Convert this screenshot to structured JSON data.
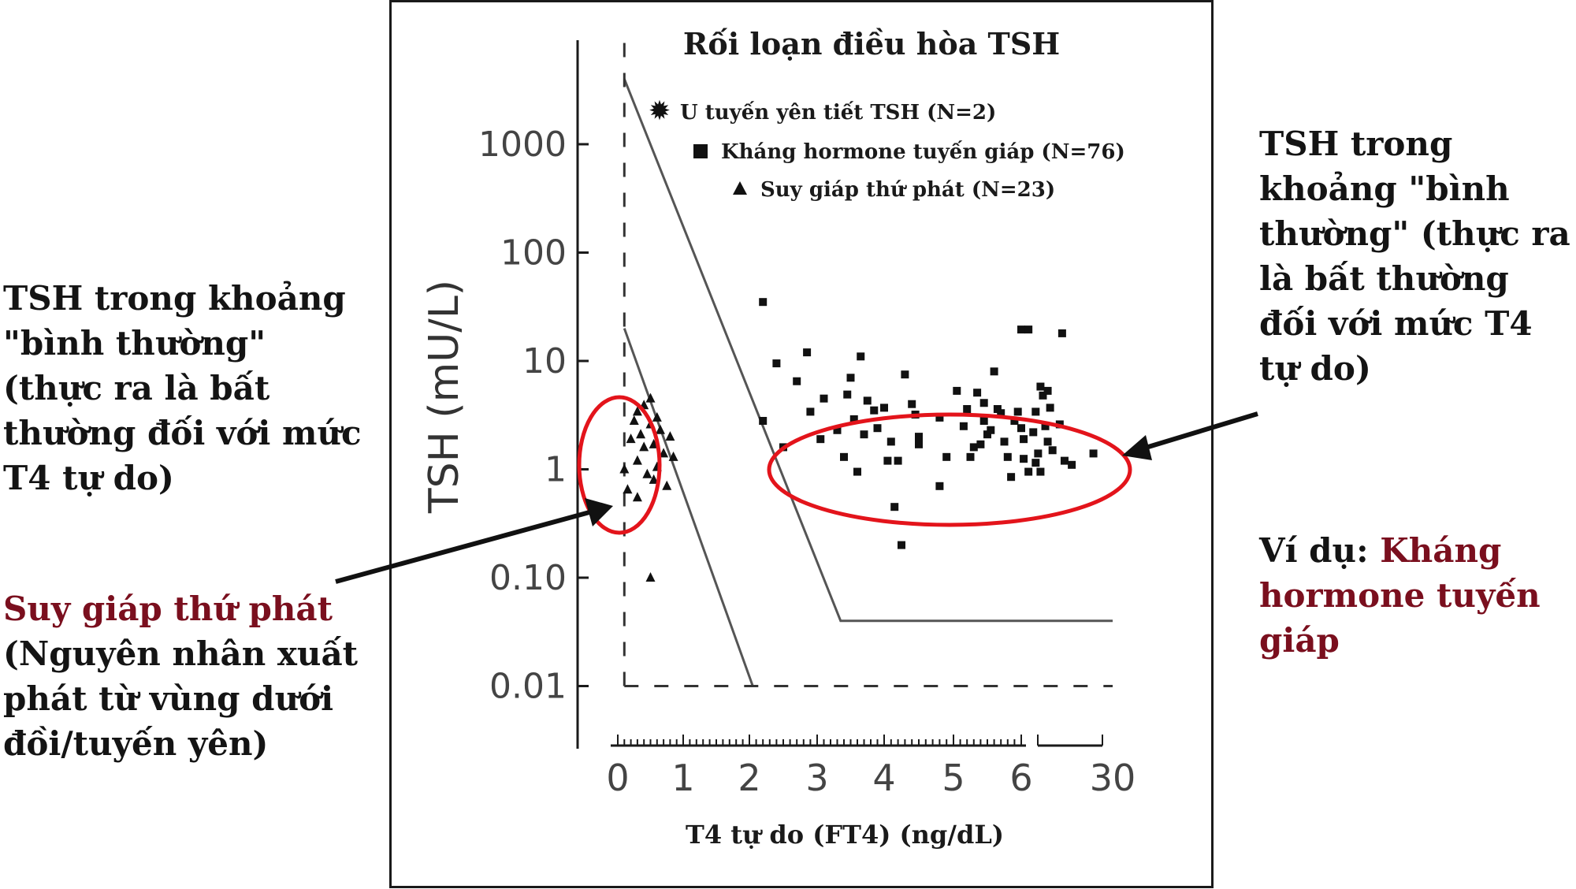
{
  "annotations": {
    "left_top": "TSH trong khoảng \"bình thường\" (thực ra là bất thường đối với mức T4 tự do)",
    "left_bottom_red": "Suy giáp thứ phát",
    "left_bottom_rest": "(Nguyên nhân xuất phát từ vùng dưới đồi/tuyến yên)",
    "right_top": "TSH trong khoảng \"bình thường\" (thực ra là bất thường đối với mức T4 tự do)",
    "right_bottom_prefix": "Ví dụ: ",
    "right_bottom_red": "Kháng hormone tuyến giáp"
  },
  "colors": {
    "highlight_red": "#e3141b",
    "text_dark_red": "#7a0f1e",
    "ink": "#1a1a1a"
  },
  "chart_data": {
    "type": "scatter",
    "title": "Rối loạn điều hòa TSH",
    "xlabel": "T4 tự do (FT4) (ng/dL)",
    "ylabel": "TSH (mU/L)",
    "y_scale": "log",
    "y_ticks": [
      "0.01",
      "0.10",
      "1",
      "10",
      "100",
      "1000"
    ],
    "x_ticks": [
      "0",
      "1",
      "2",
      "3",
      "4",
      "5",
      "6",
      "30"
    ],
    "x_axis_note": "broken axis between 6 and 30",
    "legend": [
      {
        "marker": "star",
        "label": "U tuyến yên tiết TSH (N=2)"
      },
      {
        "marker": "square",
        "label": "Kháng hormone tuyến giáp (N=76)"
      },
      {
        "marker": "triangle",
        "label": "Suy giáp thứ phát (N=23)"
      }
    ],
    "series": [
      {
        "name": "Suy giáp thứ phát (N=23)",
        "marker": "triangle",
        "points": [
          [
            0.1,
            1.0
          ],
          [
            0.15,
            0.65
          ],
          [
            0.2,
            1.9
          ],
          [
            0.25,
            2.8
          ],
          [
            0.3,
            3.4
          ],
          [
            0.3,
            1.2
          ],
          [
            0.35,
            2.1
          ],
          [
            0.4,
            3.9
          ],
          [
            0.4,
            1.6
          ],
          [
            0.45,
            0.9
          ],
          [
            0.5,
            4.5
          ],
          [
            0.5,
            2.6
          ],
          [
            0.55,
            1.7
          ],
          [
            0.6,
            3.0
          ],
          [
            0.6,
            1.05
          ],
          [
            0.65,
            2.3
          ],
          [
            0.7,
            1.4
          ],
          [
            0.75,
            0.7
          ],
          [
            0.8,
            2.0
          ],
          [
            0.85,
            1.3
          ],
          [
            0.3,
            0.55
          ],
          [
            0.55,
            0.8
          ],
          [
            0.5,
            0.1
          ]
        ]
      },
      {
        "name": "Kháng hormone tuyến giáp (N=76)",
        "marker": "square",
        "points": [
          [
            2.2,
            35
          ],
          [
            2.2,
            2.8
          ],
          [
            2.4,
            9.5
          ],
          [
            2.5,
            1.6
          ],
          [
            2.7,
            6.5
          ],
          [
            2.85,
            12
          ],
          [
            2.9,
            3.4
          ],
          [
            3.05,
            1.9
          ],
          [
            3.1,
            4.5
          ],
          [
            3.3,
            2.3
          ],
          [
            3.4,
            1.3
          ],
          [
            3.45,
            4.9
          ],
          [
            3.5,
            7
          ],
          [
            3.55,
            2.9
          ],
          [
            3.6,
            0.95
          ],
          [
            3.65,
            11
          ],
          [
            3.7,
            2.1
          ],
          [
            3.75,
            4.3
          ],
          [
            3.85,
            3.5
          ],
          [
            3.9,
            2.4
          ],
          [
            4.0,
            3.7
          ],
          [
            4.05,
            1.2
          ],
          [
            4.1,
            1.8
          ],
          [
            4.15,
            0.45
          ],
          [
            4.2,
            1.2
          ],
          [
            4.25,
            0.2
          ],
          [
            4.3,
            7.5
          ],
          [
            4.4,
            4.0
          ],
          [
            4.45,
            3.2
          ],
          [
            4.5,
            1.7
          ],
          [
            4.5,
            2.0
          ],
          [
            4.8,
            0.7
          ],
          [
            4.8,
            3.0
          ],
          [
            4.9,
            1.3
          ],
          [
            5.05,
            5.3
          ],
          [
            5.15,
            2.5
          ],
          [
            5.25,
            1.3
          ],
          [
            5.35,
            5.1
          ],
          [
            5.45,
            4.1
          ],
          [
            5.45,
            2.8
          ],
          [
            5.55,
            2.3
          ],
          [
            5.6,
            8
          ],
          [
            5.65,
            3.6
          ],
          [
            5.75,
            1.8
          ],
          [
            5.8,
            1.3
          ],
          [
            5.85,
            0.85
          ],
          [
            5.95,
            3.4
          ],
          [
            6.0,
            2.4
          ],
          [
            6.05,
            1.9
          ],
          [
            6.05,
            1.25
          ],
          [
            6.15,
            0.95
          ],
          [
            5.2,
            3.6
          ],
          [
            5.3,
            1.6
          ],
          [
            5.4,
            1.7
          ],
          [
            5.5,
            2.1
          ],
          [
            5.7,
            3.3
          ],
          [
            5.9,
            2.8
          ],
          [
            6.0,
            19.5
          ],
          [
            6.15,
            19.5
          ],
          [
            6.3,
            3.4
          ],
          [
            6.35,
            1.4
          ],
          [
            6.4,
            5.8
          ],
          [
            6.4,
            0.95
          ],
          [
            6.45,
            4.8
          ],
          [
            6.5,
            2.5
          ],
          [
            6.55,
            1.8
          ],
          [
            6.6,
            3.7
          ],
          [
            6.65,
            1.5
          ],
          [
            6.8,
            2.6
          ],
          [
            6.9,
            1.2
          ],
          [
            7.05,
            1.1
          ],
          [
            7.5,
            1.4
          ],
          [
            6.85,
            18
          ],
          [
            6.55,
            5.3
          ],
          [
            6.25,
            2.2
          ],
          [
            6.3,
            1.15
          ]
        ]
      }
    ],
    "reference_lines": [
      {
        "label": "upper limit of expected TSH for FT4",
        "points": [
          [
            0.1,
            4000
          ],
          [
            3.35,
            0.04
          ],
          [
            7.9,
            0.04
          ]
        ]
      },
      {
        "label": "lower limit of expected TSH for FT4",
        "points": [
          [
            0.1,
            20
          ],
          [
            2.05,
            0.01
          ]
        ]
      },
      {
        "label": "dashed boundary",
        "style": "dashed",
        "points": [
          [
            0.1,
            0.01
          ],
          [
            0.1,
            10000
          ],
          [
            7.9,
            0.01
          ]
        ]
      }
    ]
  }
}
